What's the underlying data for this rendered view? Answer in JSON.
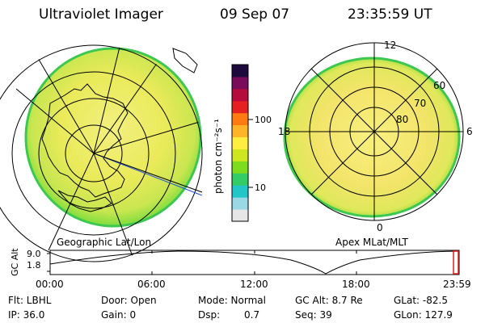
{
  "header": {
    "instrument": "Ultraviolet Imager",
    "date": "09 Sep 07",
    "time": "23:35:59 UT"
  },
  "colorbar": {
    "label": "photon cm⁻²s⁻¹",
    "tick_100": "100",
    "tick_10": "10",
    "colors": [
      "#e6e6e6",
      "#9ad8e6",
      "#21c7c7",
      "#33cc66",
      "#7ddc1e",
      "#cde61e",
      "#ffee40",
      "#ffb428",
      "#ff7a10",
      "#e62020",
      "#b40a3c",
      "#7a0a5a",
      "#1e0a3c"
    ]
  },
  "geo_map": {
    "caption": "Geographic Lat/Lon"
  },
  "mag_map": {
    "caption": "Apex MLat/MLT",
    "mlt_labels": [
      "12",
      "18",
      "6",
      "0"
    ],
    "lat_labels": [
      "60",
      "70",
      "80"
    ]
  },
  "timeline": {
    "axis_label": "GC Alt",
    "y_max": "9.0",
    "y_min": "1.8",
    "x_ticks": [
      "00:00",
      "06:00",
      "12:00",
      "18:00",
      "23:59"
    ]
  },
  "status": {
    "filter": "Flt: LBHL",
    "ip": "IP: 36.0",
    "door": "Door: Open",
    "gain": "Gain: 0",
    "mode": "Mode: Normal",
    "dsp_label": "Dsp:",
    "dsp_value": "0.7",
    "gc_alt": "GC Alt: 8.7 Re",
    "seq": "Seq: 39",
    "glat": "GLat: -82.5",
    "glon": "GLon: 127.9"
  }
}
